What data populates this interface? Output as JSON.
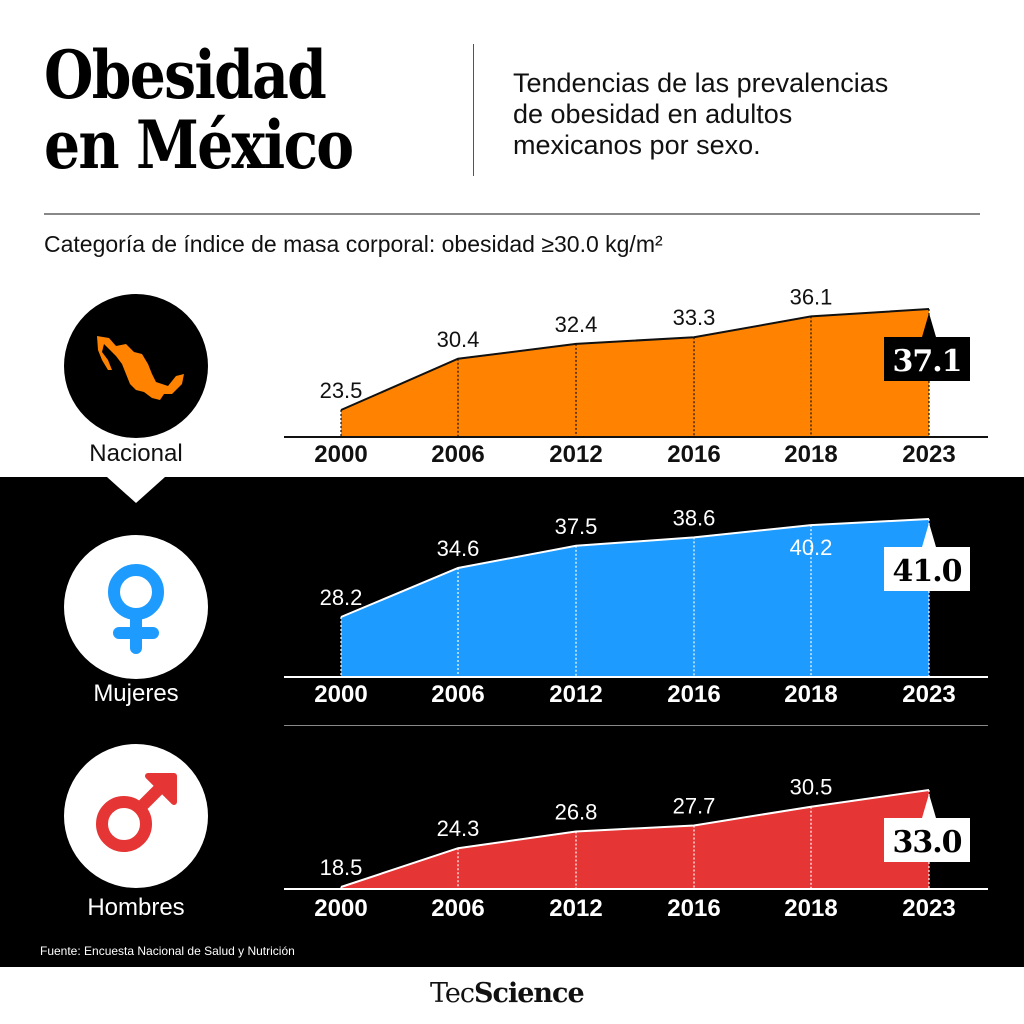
{
  "header": {
    "title_line1": "Obesidad",
    "title_line2": "en México",
    "subtitle_lines": [
      "Tendencias de las prevalencias",
      "de obesidad en adultos",
      "mexicanos por sexo."
    ],
    "category_note": "Categoría de índice de masa corporal: obesidad ≥30.0 kg/m²"
  },
  "segments": [
    {
      "label": "Nacional",
      "icon": "mexico-map-icon"
    },
    {
      "label": "Mujeres",
      "icon": "female-symbol-icon"
    },
    {
      "label": "Hombres",
      "icon": "male-symbol-icon"
    }
  ],
  "colors": {
    "nacional": "#FF8300",
    "mujeres": "#1E9BFF",
    "hombres": "#E53535",
    "dark_bg": "#000000"
  },
  "footer": {
    "source": "Fuente: Encuesta Nacional de Salud y Nutrición",
    "logo_light": "Tec",
    "logo_bold": "Science"
  },
  "chart_data": [
    {
      "type": "area",
      "title": "Nacional",
      "categories": [
        "2000",
        "2006",
        "2012",
        "2016",
        "2018",
        "2023"
      ],
      "values": [
        23.5,
        30.4,
        32.4,
        33.3,
        36.1,
        37.1
      ],
      "value_labels": [
        "23.5",
        "30.4",
        "32.4",
        "33.3",
        "36.1",
        "37.1"
      ],
      "unit": "%",
      "highlight_last": true
    },
    {
      "type": "area",
      "title": "Mujeres",
      "categories": [
        "2000",
        "2006",
        "2012",
        "2016",
        "2018",
        "2023"
      ],
      "values": [
        28.2,
        34.6,
        37.5,
        38.6,
        40.2,
        41.0
      ],
      "value_labels": [
        "28.2",
        "34.6",
        "37.5",
        "38.6",
        "40.2",
        "41.0"
      ],
      "unit": "%",
      "highlight_last": true
    },
    {
      "type": "area",
      "title": "Hombres",
      "categories": [
        "2000",
        "2006",
        "2012",
        "2016",
        "2018",
        "2023"
      ],
      "values": [
        18.5,
        24.3,
        26.8,
        27.7,
        30.5,
        33.0
      ],
      "value_labels": [
        "18.5",
        "24.3",
        "26.8",
        "27.7",
        "30.5",
        "33.0"
      ],
      "unit": "%",
      "highlight_last": true
    }
  ]
}
